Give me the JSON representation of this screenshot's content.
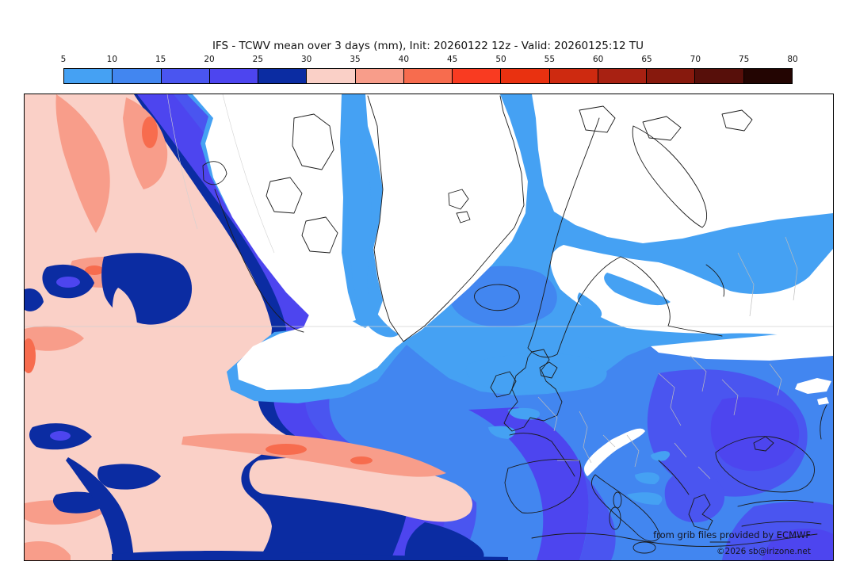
{
  "title": "IFS - TCWV mean over 3 days (mm), Init: 20260122 12z - Valid: 20260125:12 TU",
  "colorbar": {
    "ticks": [
      "5",
      "10",
      "15",
      "20",
      "25",
      "30",
      "35",
      "40",
      "45",
      "50",
      "55",
      "60",
      "65",
      "70",
      "75",
      "80"
    ],
    "segment_keys": [
      "c5_10",
      "c10_15",
      "c15_20",
      "c20_25",
      "c25_30",
      "c30_35",
      "c35_40",
      "c40_45",
      "c45_50",
      "c50_55",
      "c55_60",
      "c60_65",
      "c65_70",
      "c70_75",
      "c75_80"
    ]
  },
  "palette": {
    "w": "#ffffff",
    "c5_10": "#45A1F3",
    "c10_15": "#4286F0",
    "c15_20": "#4A55F0",
    "c20_25": "#4D45EF",
    "c25_30": "#0B2CA2",
    "c30_35": "#FAD0C7",
    "c35_40": "#F89D8A",
    "c40_45": "#F76C4E",
    "c45_50": "#F93B21",
    "c50_55": "#E93110",
    "c55_60": "#CE2A10",
    "c60_65": "#A82112",
    "c65_70": "#87190D",
    "c70_75": "#570F0A",
    "c75_80": "#230502",
    "coast": "#1a1a1a",
    "border": "#bdbdbd",
    "graticule": "#d2d2d2"
  },
  "map": {
    "attribution_line1": "from grib files provided by ECMWF",
    "attribution_line2": "©2026 sb@irizone.net"
  }
}
